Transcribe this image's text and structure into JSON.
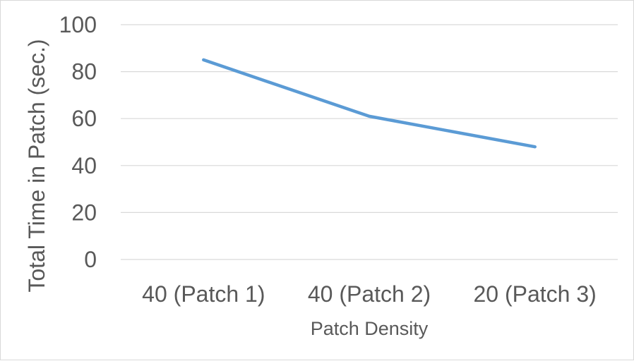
{
  "chart_data": {
    "type": "line",
    "categories": [
      "40 (Patch 1)",
      "40 (Patch 2)",
      "20 (Patch 3)"
    ],
    "series": [
      {
        "values": [
          85,
          61,
          48
        ],
        "color": "#5b9bd5"
      }
    ],
    "xlabel": "Patch Density",
    "ylabel": "Total Time in Patch (sec.)",
    "ylim": [
      0,
      100
    ],
    "yticks": [
      0,
      20,
      40,
      60,
      80,
      100
    ],
    "grid": true,
    "gridColor": "#d9d9d9",
    "textColor": "#595959"
  }
}
